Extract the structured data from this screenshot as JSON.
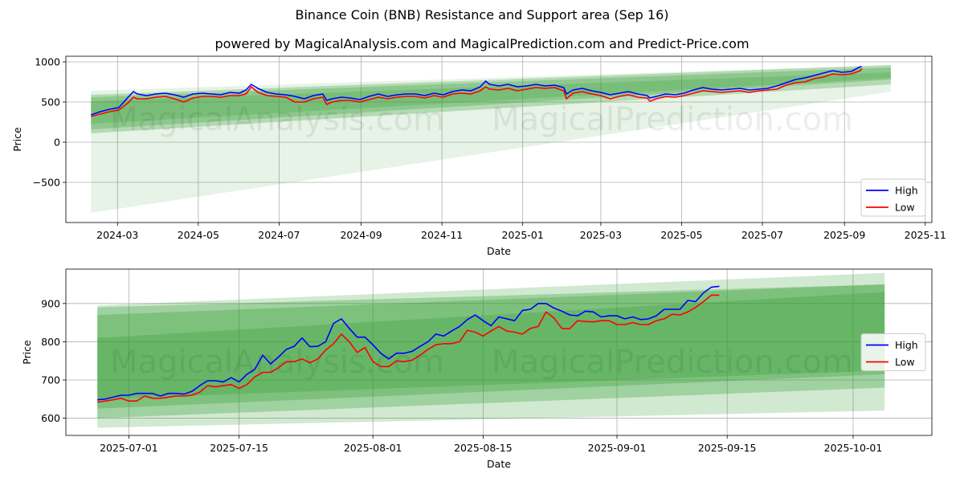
{
  "title": "Binance Coin (BNB) Resistance and Support area (Sep 16)",
  "subtitle": "powered by MagicalAnalysis.com and MagicalPrediction.com and Predict-Price.com",
  "watermark": [
    "MagicalAnalysis.com",
    "MagicalPrediction.com"
  ],
  "colors": {
    "high": "#0000ff",
    "low": "#ff0000",
    "band": "#2e9b2e",
    "grid": "#b0b0b0",
    "frame": "#000000"
  },
  "chart_data": [
    {
      "id": "overview",
      "type": "line",
      "title": "",
      "xlabel": "Date",
      "ylabel": "Price",
      "xlim": [
        "2024-01-22",
        "2025-11-06"
      ],
      "ylim": [
        -1000,
        1070
      ],
      "grid": true,
      "legend_position": "lower-right",
      "xticks": [
        "2024-03-01",
        "2024-05-01",
        "2024-07-01",
        "2024-09-01",
        "2024-11-01",
        "2025-01-01",
        "2025-03-01",
        "2025-05-01",
        "2025-07-01",
        "2025-09-01",
        "2025-11-01"
      ],
      "xtick_labels": [
        "2024-03",
        "2024-05",
        "2024-07",
        "2024-09",
        "2024-11",
        "2025-01",
        "2025-03",
        "2025-05",
        "2025-07",
        "2025-09",
        "2025-11"
      ],
      "yticks": [
        1000,
        500,
        0,
        -500
      ],
      "ytick_labels": [
        "1000",
        "500",
        "0",
        "−500"
      ],
      "bands": [
        {
          "x": [
            "2024-02-10",
            "2025-10-06"
          ],
          "upper": [
            640,
            960
          ],
          "lower": [
            -880,
            630
          ],
          "opacity": 0.12
        },
        {
          "x": [
            "2024-02-10",
            "2025-10-06"
          ],
          "upper": [
            590,
            960
          ],
          "lower": [
            110,
            720
          ],
          "opacity": 0.28
        },
        {
          "x": [
            "2024-02-10",
            "2025-10-06"
          ],
          "upper": [
            560,
            930
          ],
          "lower": [
            160,
            780
          ],
          "opacity": 0.28
        },
        {
          "x": [
            "2024-02-10",
            "2025-10-06"
          ],
          "upper": [
            510,
            870
          ],
          "lower": [
            230,
            800
          ],
          "opacity": 0.22
        }
      ],
      "series": [
        {
          "name": "High",
          "color": "#0000ff",
          "x": [
            "2024-02-10",
            "2024-02-17",
            "2024-02-24",
            "2024-03-02",
            "2024-03-09",
            "2024-03-13",
            "2024-03-16",
            "2024-03-23",
            "2024-03-30",
            "2024-04-06",
            "2024-04-13",
            "2024-04-20",
            "2024-04-27",
            "2024-05-04",
            "2024-05-11",
            "2024-05-18",
            "2024-05-25",
            "2024-06-01",
            "2024-06-06",
            "2024-06-10",
            "2024-06-15",
            "2024-06-22",
            "2024-06-29",
            "2024-07-06",
            "2024-07-13",
            "2024-07-20",
            "2024-07-27",
            "2024-08-03",
            "2024-08-06",
            "2024-08-10",
            "2024-08-17",
            "2024-08-24",
            "2024-08-31",
            "2024-09-07",
            "2024-09-14",
            "2024-09-21",
            "2024-09-28",
            "2024-10-05",
            "2024-10-12",
            "2024-10-19",
            "2024-10-26",
            "2024-11-02",
            "2024-11-09",
            "2024-11-16",
            "2024-11-23",
            "2024-11-30",
            "2024-12-04",
            "2024-12-07",
            "2024-12-14",
            "2024-12-21",
            "2024-12-28",
            "2025-01-04",
            "2025-01-11",
            "2025-01-18",
            "2025-01-25",
            "2025-02-01",
            "2025-02-03",
            "2025-02-08",
            "2025-02-15",
            "2025-02-22",
            "2025-03-01",
            "2025-03-08",
            "2025-03-15",
            "2025-03-22",
            "2025-03-29",
            "2025-04-05",
            "2025-04-07",
            "2025-04-12",
            "2025-04-19",
            "2025-04-26",
            "2025-05-03",
            "2025-05-10",
            "2025-05-17",
            "2025-05-24",
            "2025-05-31",
            "2025-06-07",
            "2025-06-14",
            "2025-06-21",
            "2025-06-28",
            "2025-07-05",
            "2025-07-12",
            "2025-07-19",
            "2025-07-26",
            "2025-08-02",
            "2025-08-09",
            "2025-08-16",
            "2025-08-23",
            "2025-08-30",
            "2025-09-06",
            "2025-09-13",
            "2025-09-14"
          ],
          "values": [
            340,
            380,
            410,
            430,
            560,
            630,
            600,
            580,
            600,
            610,
            590,
            560,
            600,
            610,
            600,
            590,
            620,
            610,
            650,
            720,
            670,
            620,
            600,
            590,
            570,
            540,
            580,
            600,
            520,
            540,
            560,
            550,
            530,
            570,
            600,
            570,
            590,
            600,
            600,
            580,
            610,
            590,
            630,
            650,
            640,
            690,
            760,
            720,
            700,
            720,
            690,
            700,
            720,
            700,
            710,
            680,
            600,
            650,
            670,
            640,
            620,
            590,
            610,
            630,
            600,
            580,
            550,
            570,
            600,
            590,
            610,
            650,
            680,
            660,
            650,
            660,
            670,
            650,
            660,
            670,
            700,
            740,
            780,
            800,
            830,
            860,
            890,
            870,
            880,
            940,
            940
          ]
        },
        {
          "name": "Low",
          "color": "#ff0000",
          "x": [
            "2024-02-10",
            "2024-02-17",
            "2024-02-24",
            "2024-03-02",
            "2024-03-09",
            "2024-03-13",
            "2024-03-16",
            "2024-03-23",
            "2024-03-30",
            "2024-04-06",
            "2024-04-13",
            "2024-04-20",
            "2024-04-27",
            "2024-05-04",
            "2024-05-11",
            "2024-05-18",
            "2024-05-25",
            "2024-06-01",
            "2024-06-06",
            "2024-06-10",
            "2024-06-15",
            "2024-06-22",
            "2024-06-29",
            "2024-07-06",
            "2024-07-13",
            "2024-07-20",
            "2024-07-27",
            "2024-08-03",
            "2024-08-06",
            "2024-08-10",
            "2024-08-17",
            "2024-08-24",
            "2024-08-31",
            "2024-09-07",
            "2024-09-14",
            "2024-09-21",
            "2024-09-28",
            "2024-10-05",
            "2024-10-12",
            "2024-10-19",
            "2024-10-26",
            "2024-11-02",
            "2024-11-09",
            "2024-11-16",
            "2024-11-23",
            "2024-11-30",
            "2024-12-04",
            "2024-12-07",
            "2024-12-14",
            "2024-12-21",
            "2024-12-28",
            "2025-01-04",
            "2025-01-11",
            "2025-01-18",
            "2025-01-25",
            "2025-02-01",
            "2025-02-03",
            "2025-02-08",
            "2025-02-15",
            "2025-02-22",
            "2025-03-01",
            "2025-03-08",
            "2025-03-15",
            "2025-03-22",
            "2025-03-29",
            "2025-04-05",
            "2025-04-07",
            "2025-04-12",
            "2025-04-19",
            "2025-04-26",
            "2025-05-03",
            "2025-05-10",
            "2025-05-17",
            "2025-05-24",
            "2025-05-31",
            "2025-06-07",
            "2025-06-14",
            "2025-06-21",
            "2025-06-28",
            "2025-07-05",
            "2025-07-12",
            "2025-07-19",
            "2025-07-26",
            "2025-08-02",
            "2025-08-09",
            "2025-08-16",
            "2025-08-23",
            "2025-08-30",
            "2025-09-06",
            "2025-09-13",
            "2025-09-14"
          ],
          "values": [
            320,
            350,
            380,
            400,
            490,
            560,
            540,
            540,
            560,
            570,
            540,
            500,
            550,
            570,
            570,
            560,
            580,
            580,
            600,
            690,
            620,
            580,
            570,
            560,
            500,
            500,
            540,
            560,
            470,
            500,
            520,
            520,
            500,
            530,
            560,
            540,
            560,
            570,
            570,
            550,
            580,
            560,
            600,
            610,
            600,
            640,
            690,
            660,
            650,
            670,
            640,
            660,
            680,
            670,
            680,
            640,
            540,
            610,
            630,
            600,
            580,
            540,
            570,
            590,
            560,
            550,
            510,
            540,
            570,
            560,
            580,
            610,
            640,
            630,
            620,
            630,
            640,
            620,
            640,
            650,
            660,
            710,
            740,
            750,
            790,
            810,
            850,
            840,
            850,
            890,
            920
          ]
        }
      ]
    },
    {
      "id": "detail",
      "type": "line",
      "title": "",
      "xlabel": "Date",
      "ylabel": "Price",
      "xlim": [
        "2025-06-23",
        "2025-10-11"
      ],
      "ylim": [
        555,
        990
      ],
      "grid": true,
      "legend_position": "center-right",
      "xticks": [
        "2025-07-01",
        "2025-07-15",
        "2025-08-01",
        "2025-08-15",
        "2025-09-01",
        "2025-09-15",
        "2025-10-01"
      ],
      "xtick_labels": [
        "2025-07-01",
        "2025-07-15",
        "2025-08-01",
        "2025-08-15",
        "2025-09-01",
        "2025-09-15",
        "2025-10-01"
      ],
      "yticks": [
        900,
        800,
        700,
        600
      ],
      "ytick_labels": [
        "900",
        "800",
        "700",
        "600"
      ],
      "bands": [
        {
          "x": [
            "2025-06-27",
            "2025-10-05"
          ],
          "upper": [
            895,
            980
          ],
          "lower": [
            575,
            620
          ],
          "opacity": 0.22
        },
        {
          "x": [
            "2025-06-27",
            "2025-10-05"
          ],
          "upper": [
            890,
            950
          ],
          "lower": [
            600,
            680
          ],
          "opacity": 0.3
        },
        {
          "x": [
            "2025-06-27",
            "2025-10-05"
          ],
          "upper": [
            870,
            950
          ],
          "lower": [
            625,
            715
          ],
          "opacity": 0.3
        },
        {
          "x": [
            "2025-06-27",
            "2025-10-05"
          ],
          "upper": [
            810,
            930
          ],
          "lower": [
            650,
            725
          ],
          "opacity": 0.28
        }
      ],
      "series": [
        {
          "name": "High",
          "color": "#0000ff",
          "x": [
            "2025-06-27",
            "2025-06-28",
            "2025-06-29",
            "2025-06-30",
            "2025-07-01",
            "2025-07-02",
            "2025-07-03",
            "2025-07-04",
            "2025-07-05",
            "2025-07-06",
            "2025-07-07",
            "2025-07-08",
            "2025-07-09",
            "2025-07-10",
            "2025-07-11",
            "2025-07-12",
            "2025-07-13",
            "2025-07-14",
            "2025-07-15",
            "2025-07-16",
            "2025-07-17",
            "2025-07-18",
            "2025-07-19",
            "2025-07-20",
            "2025-07-21",
            "2025-07-22",
            "2025-07-23",
            "2025-07-24",
            "2025-07-25",
            "2025-07-26",
            "2025-07-27",
            "2025-07-28",
            "2025-07-29",
            "2025-07-30",
            "2025-07-31",
            "2025-08-01",
            "2025-08-02",
            "2025-08-03",
            "2025-08-04",
            "2025-08-05",
            "2025-08-06",
            "2025-08-07",
            "2025-08-08",
            "2025-08-09",
            "2025-08-10",
            "2025-08-11",
            "2025-08-12",
            "2025-08-13",
            "2025-08-14",
            "2025-08-15",
            "2025-08-16",
            "2025-08-17",
            "2025-08-18",
            "2025-08-19",
            "2025-08-20",
            "2025-08-21",
            "2025-08-22",
            "2025-08-23",
            "2025-08-24",
            "2025-08-25",
            "2025-08-26",
            "2025-08-27",
            "2025-08-28",
            "2025-08-29",
            "2025-08-30",
            "2025-08-31",
            "2025-09-01",
            "2025-09-02",
            "2025-09-03",
            "2025-09-04",
            "2025-09-05",
            "2025-09-06",
            "2025-09-07",
            "2025-09-08",
            "2025-09-09",
            "2025-09-10",
            "2025-09-11",
            "2025-09-12",
            "2025-09-13",
            "2025-09-14"
          ],
          "values": [
            648,
            650,
            655,
            660,
            660,
            665,
            665,
            665,
            658,
            665,
            665,
            663,
            670,
            685,
            698,
            698,
            695,
            706,
            695,
            715,
            728,
            765,
            742,
            760,
            780,
            788,
            810,
            787,
            788,
            800,
            848,
            860,
            835,
            812,
            812,
            792,
            770,
            755,
            770,
            770,
            775,
            788,
            800,
            820,
            815,
            828,
            840,
            858,
            870,
            855,
            842,
            865,
            860,
            855,
            882,
            885,
            900,
            900,
            888,
            880,
            870,
            868,
            880,
            878,
            865,
            868,
            868,
            860,
            865,
            858,
            860,
            868,
            885,
            885,
            885,
            908,
            905,
            928,
            943,
            945
          ]
        },
        {
          "name": "Low",
          "color": "#ff0000",
          "x": [
            "2025-06-27",
            "2025-06-28",
            "2025-06-29",
            "2025-06-30",
            "2025-07-01",
            "2025-07-02",
            "2025-07-03",
            "2025-07-04",
            "2025-07-05",
            "2025-07-06",
            "2025-07-07",
            "2025-07-08",
            "2025-07-09",
            "2025-07-10",
            "2025-07-11",
            "2025-07-12",
            "2025-07-13",
            "2025-07-14",
            "2025-07-15",
            "2025-07-16",
            "2025-07-17",
            "2025-07-18",
            "2025-07-19",
            "2025-07-20",
            "2025-07-21",
            "2025-07-22",
            "2025-07-23",
            "2025-07-24",
            "2025-07-25",
            "2025-07-26",
            "2025-07-27",
            "2025-07-28",
            "2025-07-29",
            "2025-07-30",
            "2025-07-31",
            "2025-08-01",
            "2025-08-02",
            "2025-08-03",
            "2025-08-04",
            "2025-08-05",
            "2025-08-06",
            "2025-08-07",
            "2025-08-08",
            "2025-08-09",
            "2025-08-10",
            "2025-08-11",
            "2025-08-12",
            "2025-08-13",
            "2025-08-14",
            "2025-08-15",
            "2025-08-16",
            "2025-08-17",
            "2025-08-18",
            "2025-08-19",
            "2025-08-20",
            "2025-08-21",
            "2025-08-22",
            "2025-08-23",
            "2025-08-24",
            "2025-08-25",
            "2025-08-26",
            "2025-08-27",
            "2025-08-28",
            "2025-08-29",
            "2025-08-30",
            "2025-08-31",
            "2025-09-01",
            "2025-09-02",
            "2025-09-03",
            "2025-09-04",
            "2025-09-05",
            "2025-09-06",
            "2025-09-07",
            "2025-09-08",
            "2025-09-09",
            "2025-09-10",
            "2025-09-11",
            "2025-09-12",
            "2025-09-13",
            "2025-09-14"
          ],
          "values": [
            642,
            645,
            648,
            652,
            645,
            645,
            658,
            652,
            652,
            655,
            658,
            658,
            660,
            668,
            685,
            682,
            685,
            688,
            678,
            688,
            708,
            720,
            720,
            732,
            748,
            748,
            755,
            745,
            755,
            778,
            795,
            820,
            800,
            772,
            785,
            748,
            735,
            735,
            750,
            748,
            752,
            765,
            780,
            792,
            795,
            795,
            800,
            830,
            825,
            815,
            828,
            840,
            828,
            825,
            820,
            835,
            840,
            878,
            862,
            835,
            834,
            855,
            853,
            852,
            855,
            855,
            845,
            845,
            850,
            845,
            845,
            855,
            860,
            872,
            870,
            878,
            890,
            905,
            922,
            922
          ]
        }
      ]
    }
  ]
}
